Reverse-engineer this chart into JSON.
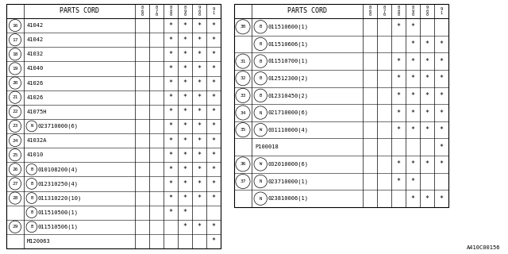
{
  "background": "#ffffff",
  "col_headers": [
    "8\n6\n0",
    "8\n7\n0",
    "8\n8\n0",
    "8\n9\n0",
    "9\n0\n0",
    "9\n1"
  ],
  "table1": {
    "title": "PARTS CORD",
    "rows": [
      {
        "num": "16",
        "prefix": "",
        "part": "41042",
        "stars": [
          0,
          0,
          1,
          1,
          1,
          1
        ]
      },
      {
        "num": "17",
        "prefix": "",
        "part": "41042",
        "stars": [
          0,
          0,
          1,
          1,
          1,
          1
        ]
      },
      {
        "num": "18",
        "prefix": "",
        "part": "41032",
        "stars": [
          0,
          0,
          1,
          1,
          1,
          1
        ]
      },
      {
        "num": "19",
        "prefix": "",
        "part": "41040",
        "stars": [
          0,
          0,
          1,
          1,
          1,
          1
        ]
      },
      {
        "num": "20",
        "prefix": "",
        "part": "41026",
        "stars": [
          0,
          0,
          1,
          1,
          1,
          1
        ]
      },
      {
        "num": "21",
        "prefix": "",
        "part": "41026",
        "stars": [
          0,
          0,
          1,
          1,
          1,
          1
        ]
      },
      {
        "num": "22",
        "prefix": "",
        "part": "41075H",
        "stars": [
          0,
          0,
          1,
          1,
          1,
          1
        ]
      },
      {
        "num": "23",
        "prefix": "N",
        "part": "023710000(6)",
        "stars": [
          0,
          0,
          1,
          1,
          1,
          1
        ]
      },
      {
        "num": "24",
        "prefix": "",
        "part": "41032A",
        "stars": [
          0,
          0,
          1,
          1,
          1,
          1
        ]
      },
      {
        "num": "25",
        "prefix": "",
        "part": "41010",
        "stars": [
          0,
          0,
          1,
          1,
          1,
          1
        ]
      },
      {
        "num": "26",
        "prefix": "B",
        "part": "010108200(4)",
        "stars": [
          0,
          0,
          1,
          1,
          1,
          1
        ]
      },
      {
        "num": "27",
        "prefix": "B",
        "part": "012310250(4)",
        "stars": [
          0,
          0,
          1,
          1,
          1,
          1
        ]
      },
      {
        "num": "28",
        "prefix": "B",
        "part": "011310220(10)",
        "stars": [
          0,
          0,
          1,
          1,
          1,
          1
        ]
      },
      {
        "num": "",
        "prefix": "B",
        "part": "011510500(1)",
        "stars": [
          0,
          0,
          1,
          1,
          0,
          0
        ]
      },
      {
        "num": "29",
        "prefix": "B",
        "part": "011510506(1)",
        "stars": [
          0,
          0,
          0,
          1,
          1,
          1
        ]
      },
      {
        "num": "",
        "prefix": "",
        "part": "M120063",
        "stars": [
          0,
          0,
          0,
          0,
          0,
          1
        ]
      }
    ]
  },
  "table2": {
    "title": "PARTS CORD",
    "rows": [
      {
        "num": "30",
        "prefix": "B",
        "part": "011510600(1)",
        "stars": [
          0,
          0,
          1,
          1,
          0,
          0
        ]
      },
      {
        "num": "",
        "prefix": "B",
        "part": "011510606(1)",
        "stars": [
          0,
          0,
          0,
          1,
          1,
          1
        ]
      },
      {
        "num": "31",
        "prefix": "B",
        "part": "011510700(1)",
        "stars": [
          0,
          0,
          1,
          1,
          1,
          1
        ]
      },
      {
        "num": "32",
        "prefix": "B",
        "part": "012512300(2)",
        "stars": [
          0,
          0,
          1,
          1,
          1,
          1
        ]
      },
      {
        "num": "33",
        "prefix": "B",
        "part": "012310450(2)",
        "stars": [
          0,
          0,
          1,
          1,
          1,
          1
        ]
      },
      {
        "num": "34",
        "prefix": "N",
        "part": "021710000(6)",
        "stars": [
          0,
          0,
          1,
          1,
          1,
          1
        ]
      },
      {
        "num": "35",
        "prefix": "W",
        "part": "031110000(4)",
        "stars": [
          0,
          0,
          1,
          1,
          1,
          1
        ]
      },
      {
        "num": "",
        "prefix": "",
        "part": "P100018",
        "stars": [
          0,
          0,
          0,
          0,
          0,
          1
        ]
      },
      {
        "num": "36",
        "prefix": "W",
        "part": "032010000(6)",
        "stars": [
          0,
          0,
          1,
          1,
          1,
          1
        ]
      },
      {
        "num": "37",
        "prefix": "N",
        "part": "023710000(1)",
        "stars": [
          0,
          0,
          1,
          1,
          0,
          0
        ]
      },
      {
        "num": "",
        "prefix": "N",
        "part": "023810006(1)",
        "stars": [
          0,
          0,
          0,
          1,
          1,
          1
        ]
      }
    ]
  },
  "caption": "A410C00156"
}
